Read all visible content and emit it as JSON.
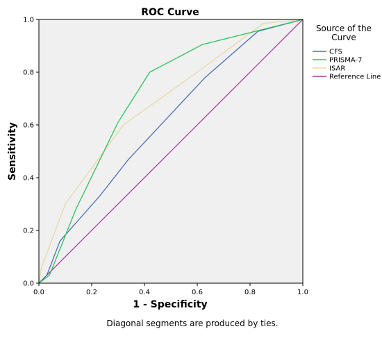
{
  "chart_data": {
    "type": "line",
    "title": "ROC Curve",
    "xlabel": "1 - Specificity",
    "ylabel": "Sensitivity",
    "xlim": [
      0,
      1
    ],
    "ylim": [
      0,
      1
    ],
    "xticks": [
      "0.0",
      "0.2",
      "0.4",
      "0.6",
      "0.8",
      "1.0"
    ],
    "yticks": [
      "0.0",
      "0.2",
      "0.4",
      "0.6",
      "0.8",
      "1.0"
    ],
    "grid": false,
    "background": "#f0f0f0",
    "legend_title_lines": [
      "Source of the",
      "Curve"
    ],
    "legend_placement": "right",
    "footnote": "Diagonal segments are produced by ties.",
    "series": [
      {
        "name": "CFS",
        "color": "#4a6fb5",
        "x": [
          0,
          0.03,
          0.08,
          0.23,
          0.34,
          0.63,
          0.83,
          1.0
        ],
        "y": [
          0,
          0.03,
          0.16,
          0.33,
          0.47,
          0.78,
          0.955,
          1.0
        ]
      },
      {
        "name": "PRISMA-7",
        "color": "#2fbf5a",
        "x": [
          0,
          0.04,
          0.14,
          0.3,
          0.42,
          0.62,
          0.84,
          1.0
        ],
        "y": [
          0,
          0.03,
          0.28,
          0.61,
          0.8,
          0.905,
          0.96,
          1.0
        ]
      },
      {
        "name": "ISAR",
        "color": "#e5d9a3",
        "x": [
          0,
          0.01,
          0.1,
          0.32,
          0.6,
          0.85,
          1.0
        ],
        "y": [
          0,
          0.06,
          0.3,
          0.6,
          0.8,
          0.985,
          1.0
        ]
      },
      {
        "name": "Reference Line",
        "color": "#a0409a",
        "x": [
          0,
          1.0
        ],
        "y": [
          0,
          1.0
        ]
      }
    ]
  }
}
